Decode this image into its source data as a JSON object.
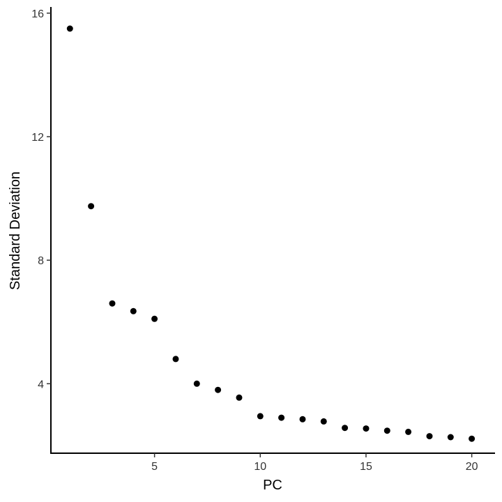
{
  "chart_data": {
    "type": "scatter",
    "title": "",
    "xlabel": "PC",
    "ylabel": "Standard Deviation",
    "x": [
      1,
      2,
      3,
      4,
      5,
      6,
      7,
      8,
      9,
      10,
      11,
      12,
      13,
      14,
      15,
      16,
      17,
      18,
      19,
      20
    ],
    "y": [
      15.5,
      9.75,
      6.6,
      6.35,
      6.1,
      4.8,
      4.0,
      3.8,
      3.55,
      2.95,
      2.9,
      2.85,
      2.78,
      2.57,
      2.55,
      2.48,
      2.44,
      2.3,
      2.27,
      2.22
    ],
    "xlim": [
      0.1,
      21.1
    ],
    "ylim": [
      1.75,
      16.2
    ],
    "xticks": [
      5,
      10,
      15,
      20
    ],
    "yticks": [
      4,
      8,
      12,
      16
    ],
    "grid": false,
    "point_color": "#000000"
  }
}
